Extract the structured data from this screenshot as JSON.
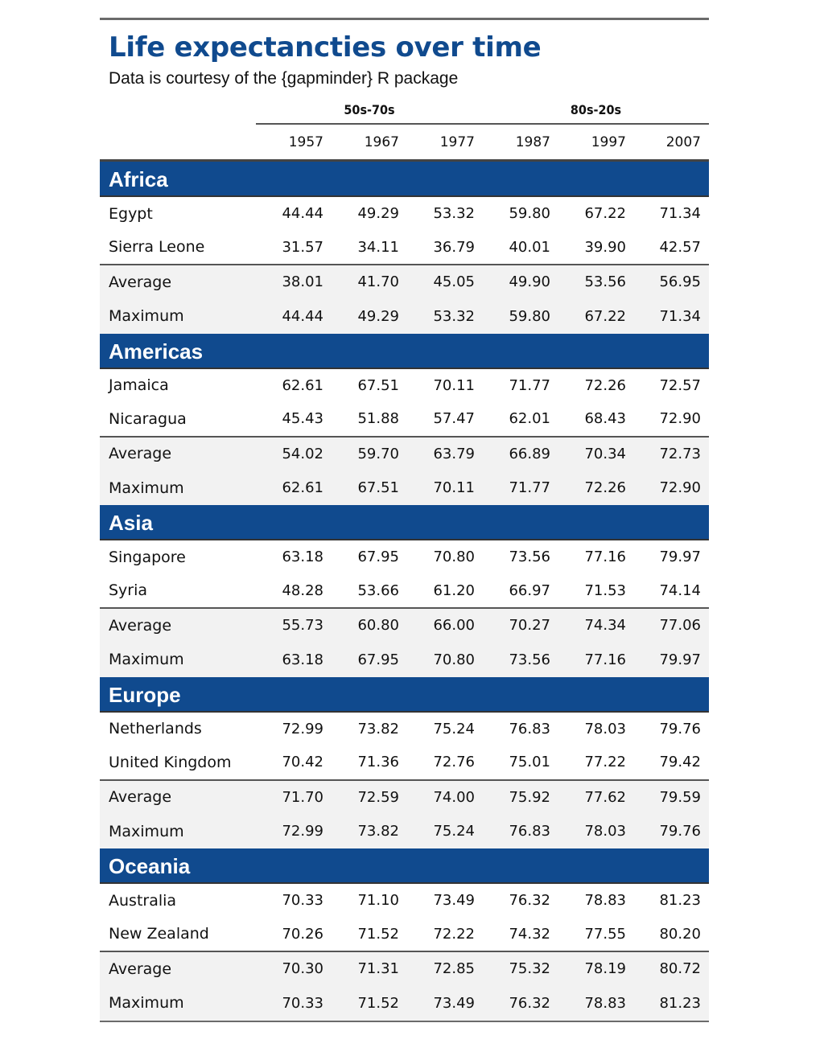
{
  "title": "Life expectancties over time",
  "subtitle": "Data is courtesy of the {gapminder} R package",
  "spanners": [
    "50s-70s",
    "80s-20s"
  ],
  "years": [
    "1957",
    "1967",
    "1977",
    "1987",
    "1997",
    "2007"
  ],
  "groups": [
    {
      "name": "Africa",
      "rows": [
        {
          "label": "Egypt",
          "values": [
            "44.44",
            "49.29",
            "53.32",
            "59.80",
            "67.22",
            "71.34"
          ]
        },
        {
          "label": "Sierra Leone",
          "values": [
            "31.57",
            "34.11",
            "36.79",
            "40.01",
            "39.90",
            "42.57"
          ]
        }
      ],
      "summaries": [
        {
          "label": "Average",
          "values": [
            "38.01",
            "41.70",
            "45.05",
            "49.90",
            "53.56",
            "56.95"
          ]
        },
        {
          "label": "Maximum",
          "values": [
            "44.44",
            "49.29",
            "53.32",
            "59.80",
            "67.22",
            "71.34"
          ]
        }
      ]
    },
    {
      "name": "Americas",
      "rows": [
        {
          "label": "Jamaica",
          "values": [
            "62.61",
            "67.51",
            "70.11",
            "71.77",
            "72.26",
            "72.57"
          ]
        },
        {
          "label": "Nicaragua",
          "values": [
            "45.43",
            "51.88",
            "57.47",
            "62.01",
            "68.43",
            "72.90"
          ]
        }
      ],
      "summaries": [
        {
          "label": "Average",
          "values": [
            "54.02",
            "59.70",
            "63.79",
            "66.89",
            "70.34",
            "72.73"
          ]
        },
        {
          "label": "Maximum",
          "values": [
            "62.61",
            "67.51",
            "70.11",
            "71.77",
            "72.26",
            "72.90"
          ]
        }
      ]
    },
    {
      "name": "Asia",
      "rows": [
        {
          "label": "Singapore",
          "values": [
            "63.18",
            "67.95",
            "70.80",
            "73.56",
            "77.16",
            "79.97"
          ]
        },
        {
          "label": "Syria",
          "values": [
            "48.28",
            "53.66",
            "61.20",
            "66.97",
            "71.53",
            "74.14"
          ]
        }
      ],
      "summaries": [
        {
          "label": "Average",
          "values": [
            "55.73",
            "60.80",
            "66.00",
            "70.27",
            "74.34",
            "77.06"
          ]
        },
        {
          "label": "Maximum",
          "values": [
            "63.18",
            "67.95",
            "70.80",
            "73.56",
            "77.16",
            "79.97"
          ]
        }
      ]
    },
    {
      "name": "Europe",
      "rows": [
        {
          "label": "Netherlands",
          "values": [
            "72.99",
            "73.82",
            "75.24",
            "76.83",
            "78.03",
            "79.76"
          ]
        },
        {
          "label": "United Kingdom",
          "values": [
            "70.42",
            "71.36",
            "72.76",
            "75.01",
            "77.22",
            "79.42"
          ]
        }
      ],
      "summaries": [
        {
          "label": "Average",
          "values": [
            "71.70",
            "72.59",
            "74.00",
            "75.92",
            "77.62",
            "79.59"
          ]
        },
        {
          "label": "Maximum",
          "values": [
            "72.99",
            "73.82",
            "75.24",
            "76.83",
            "78.03",
            "79.76"
          ]
        }
      ]
    },
    {
      "name": "Oceania",
      "rows": [
        {
          "label": "Australia",
          "values": [
            "70.33",
            "71.10",
            "73.49",
            "76.32",
            "78.83",
            "81.23"
          ]
        },
        {
          "label": "New Zealand",
          "values": [
            "70.26",
            "71.52",
            "72.22",
            "74.32",
            "77.55",
            "80.20"
          ]
        }
      ],
      "summaries": [
        {
          "label": "Average",
          "values": [
            "70.30",
            "71.31",
            "72.85",
            "75.32",
            "78.19",
            "80.72"
          ]
        },
        {
          "label": "Maximum",
          "values": [
            "70.33",
            "71.52",
            "73.49",
            "76.32",
            "78.83",
            "81.23"
          ]
        }
      ]
    }
  ],
  "colors": {
    "title": "#104a8e",
    "group_header_bg": "#104a8e",
    "group_header_text": "#ffffff",
    "summary_bg": "#f2f2f2"
  }
}
